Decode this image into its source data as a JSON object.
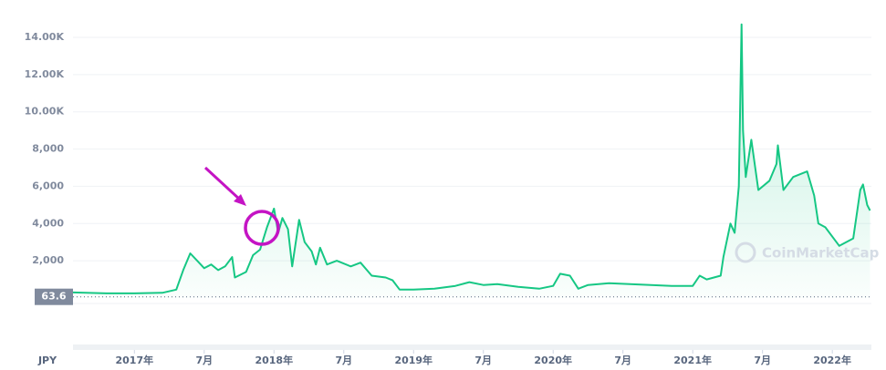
{
  "chart_data": {
    "type": "line",
    "watermark": "CoinMarketCap",
    "currency": "JPY",
    "reference_value": 63.6,
    "color": "#16c784",
    "grid": true,
    "xlim": [
      2016.56,
      2022.28
    ],
    "ylim": [
      0,
      15500
    ],
    "yticks": [
      {
        "value": 2000,
        "label": "2,000"
      },
      {
        "value": 4000,
        "label": "4,000"
      },
      {
        "value": 6000,
        "label": "6,000"
      },
      {
        "value": 8000,
        "label": "8,000"
      },
      {
        "value": 10000,
        "label": "10.00K"
      },
      {
        "value": 12000,
        "label": "12.00K"
      },
      {
        "value": 14000,
        "label": "14.00K"
      }
    ],
    "xticks": [
      {
        "value": 2017.0,
        "label": "2017年"
      },
      {
        "value": 2017.5,
        "label": "7月"
      },
      {
        "value": 2018.0,
        "label": "2018年"
      },
      {
        "value": 2018.5,
        "label": "7月"
      },
      {
        "value": 2019.0,
        "label": "2019年"
      },
      {
        "value": 2019.5,
        "label": "7月"
      },
      {
        "value": 2020.0,
        "label": "2020年"
      },
      {
        "value": 2020.5,
        "label": "7月"
      },
      {
        "value": 2021.0,
        "label": "2021年"
      },
      {
        "value": 2021.5,
        "label": "7月"
      },
      {
        "value": 2022.0,
        "label": "2022年"
      }
    ],
    "x": [
      2016.56,
      2016.8,
      2017.0,
      2017.2,
      2017.3,
      2017.35,
      2017.4,
      2017.45,
      2017.5,
      2017.55,
      2017.6,
      2017.65,
      2017.7,
      2017.72,
      2017.8,
      2017.85,
      2017.9,
      2017.95,
      2018.0,
      2018.03,
      2018.06,
      2018.1,
      2018.13,
      2018.18,
      2018.22,
      2018.27,
      2018.3,
      2018.33,
      2018.38,
      2018.45,
      2018.55,
      2018.62,
      2018.7,
      2018.8,
      2018.85,
      2018.9,
      2019.0,
      2019.15,
      2019.3,
      2019.4,
      2019.5,
      2019.6,
      2019.75,
      2019.9,
      2020.0,
      2020.05,
      2020.12,
      2020.18,
      2020.25,
      2020.4,
      2020.55,
      2020.7,
      2020.85,
      2021.0,
      2021.05,
      2021.1,
      2021.2,
      2021.22,
      2021.27,
      2021.3,
      2021.33,
      2021.35,
      2021.36,
      2021.38,
      2021.42,
      2021.47,
      2021.55,
      2021.6,
      2021.61,
      2021.65,
      2021.72,
      2021.82,
      2021.87,
      2021.9,
      2021.95,
      2022.05,
      2022.15,
      2022.2,
      2022.22,
      2022.25,
      2022.27
    ],
    "values": [
      300,
      250,
      250,
      280,
      450,
      1500,
      2400,
      2000,
      1600,
      1800,
      1500,
      1700,
      2200,
      1100,
      1400,
      2300,
      2600,
      3800,
      4800,
      3500,
      4300,
      3700,
      1700,
      4200,
      3000,
      2500,
      1800,
      2700,
      1800,
      2000,
      1700,
      1900,
      1200,
      1100,
      950,
      450,
      450,
      500,
      650,
      850,
      700,
      750,
      600,
      500,
      650,
      1300,
      1200,
      500,
      700,
      800,
      750,
      700,
      650,
      650,
      1200,
      1000,
      1200,
      2200,
      4000,
      3500,
      6000,
      14700,
      9000,
      6500,
      8500,
      5800,
      6300,
      7200,
      8200,
      5800,
      6500,
      6800,
      5500,
      4000,
      3800,
      2800,
      3200,
      5800,
      6100,
      5000,
      4700
    ]
  }
}
